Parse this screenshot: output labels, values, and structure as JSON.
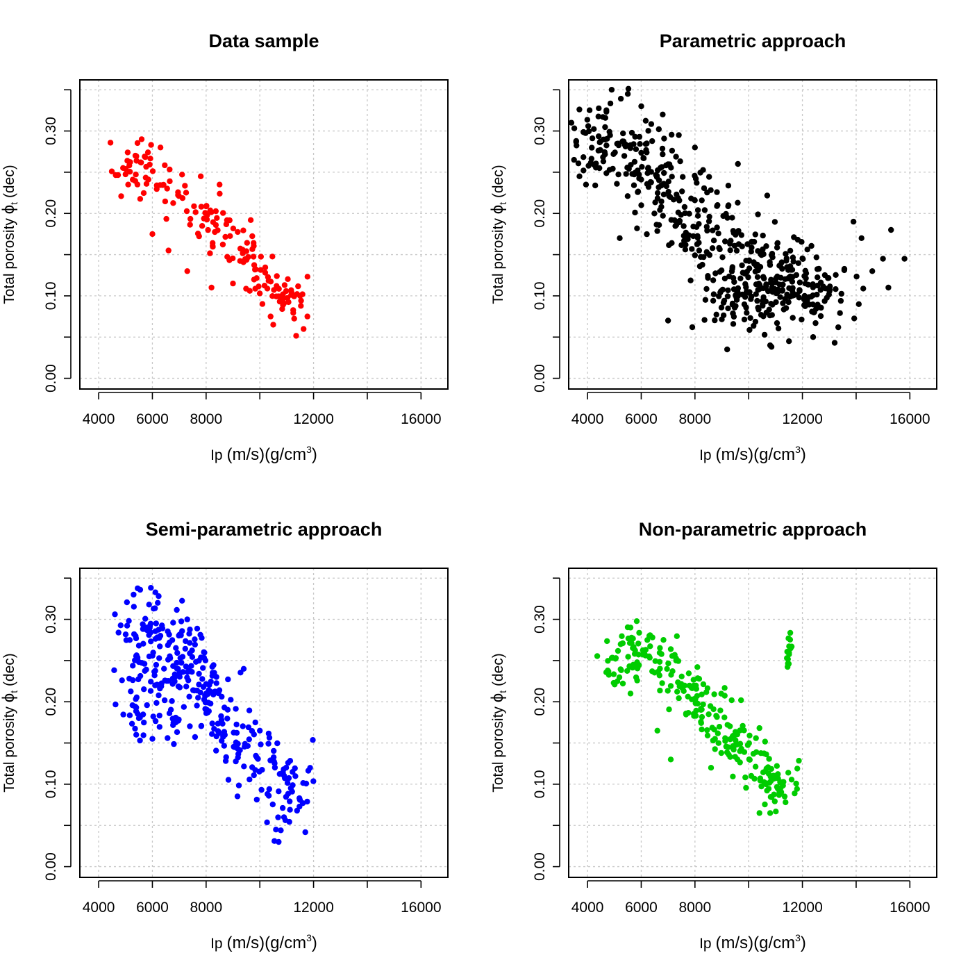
{
  "colors": {
    "data_sample": "#ff0000",
    "parametric": "#000000",
    "semi_parametric": "#0000ff",
    "non_parametric": "#00cc00"
  },
  "axis_text": {
    "xlabel_main": "Ip",
    "xlabel_units": "(m/s)(g/cm",
    "xlabel_exp": "3",
    "xlabel_close": ")",
    "ylabel_main": "Total porosity",
    "ylabel_symbol": "ϕ",
    "ylabel_sub": "t",
    "ylabel_unit": "(dec)"
  },
  "chart_data": [
    {
      "type": "scatter",
      "title": "Data sample",
      "xlabel": "Ip (m/s)(g/cm3)",
      "ylabel": "Total porosity ϕt (dec)",
      "xlim": [
        3300,
        17000
      ],
      "ylim": [
        -0.013,
        0.362
      ],
      "xticks": [
        4000,
        6000,
        8000,
        10000,
        12000,
        14000,
        16000
      ],
      "xtick_labels": [
        "4000",
        "6000",
        "8000",
        "",
        "12000",
        "",
        "16000"
      ],
      "yticks": [
        0.0,
        0.05,
        0.1,
        0.15,
        0.2,
        0.25,
        0.3,
        0.35
      ],
      "ytick_labels": [
        "0.00",
        "",
        "0.10",
        "",
        "0.20",
        "",
        "0.30",
        ""
      ],
      "grid": true,
      "color": "#ff0000",
      "clusters": [
        {
          "points": [
            [
              5200,
              0.25
            ],
            [
              5800,
              0.275
            ],
            [
              6500,
              0.24
            ],
            [
              7200,
              0.225
            ],
            [
              8000,
              0.195
            ],
            [
              8800,
              0.17
            ],
            [
              9500,
              0.155
            ],
            [
              10200,
              0.12
            ],
            [
              10800,
              0.105
            ],
            [
              11300,
              0.095
            ]
          ],
          "spread_x": 350,
          "spread_y": 0.017,
          "count": 170
        }
      ],
      "extra_points": [
        [
          5600,
          0.29
        ],
        [
          6300,
          0.28
        ],
        [
          5100,
          0.235
        ],
        [
          11500,
          0.1
        ],
        [
          10500,
          0.065
        ],
        [
          10400,
          0.075
        ],
        [
          9000,
          0.115
        ],
        [
          8200,
          0.11
        ],
        [
          7300,
          0.13
        ],
        [
          6600,
          0.155
        ],
        [
          6000,
          0.175
        ],
        [
          8500,
          0.235
        ],
        [
          7800,
          0.245
        ]
      ]
    },
    {
      "type": "scatter",
      "title": "Parametric approach",
      "xlabel": "Ip (m/s)(g/cm3)",
      "ylabel": "Total porosity ϕt (dec)",
      "xlim": [
        3300,
        17000
      ],
      "ylim": [
        -0.013,
        0.362
      ],
      "xticks": [
        4000,
        6000,
        8000,
        10000,
        12000,
        14000,
        16000
      ],
      "xtick_labels": [
        "4000",
        "6000",
        "8000",
        "",
        "12000",
        "",
        "16000"
      ],
      "yticks": [
        0.0,
        0.05,
        0.1,
        0.15,
        0.2,
        0.25,
        0.3,
        0.35
      ],
      "ytick_labels": [
        "0.00",
        "",
        "0.10",
        "",
        "0.20",
        "",
        "0.30",
        ""
      ],
      "grid": true,
      "color": "#000000",
      "clusters": [
        {
          "points": [
            [
              4200,
              0.28
            ],
            [
              5000,
              0.29
            ],
            [
              5800,
              0.275
            ],
            [
              6500,
              0.25
            ],
            [
              7300,
              0.22
            ],
            [
              8000,
              0.195
            ],
            [
              8800,
              0.17
            ],
            [
              9500,
              0.145
            ],
            [
              10300,
              0.13
            ],
            [
              11000,
              0.12
            ],
            [
              11800,
              0.115
            ]
          ],
          "spread_x": 650,
          "spread_y": 0.028,
          "count": 420
        },
        {
          "points": [
            [
              9000,
              0.1
            ],
            [
              10000,
              0.085
            ],
            [
              10800,
              0.09
            ],
            [
              12000,
              0.1
            ],
            [
              12800,
              0.11
            ]
          ],
          "spread_x": 700,
          "spread_y": 0.02,
          "count": 120
        }
      ],
      "extra_points": [
        [
          3400,
          0.31
        ],
        [
          3500,
          0.265
        ],
        [
          3700,
          0.245
        ],
        [
          4900,
          0.35
        ],
        [
          5500,
          0.345
        ],
        [
          6000,
          0.33
        ],
        [
          6800,
          0.32
        ],
        [
          7400,
          0.295
        ],
        [
          8000,
          0.28
        ],
        [
          9600,
          0.26
        ],
        [
          13900,
          0.19
        ],
        [
          14200,
          0.17
        ],
        [
          14600,
          0.13
        ],
        [
          14100,
          0.09
        ],
        [
          15000,
          0.145
        ],
        [
          15300,
          0.18
        ],
        [
          15800,
          0.145
        ],
        [
          15200,
          0.11
        ],
        [
          13200,
          0.043
        ],
        [
          9200,
          0.035
        ],
        [
          10800,
          0.04
        ],
        [
          7000,
          0.07
        ],
        [
          7900,
          0.062
        ],
        [
          6000,
          0.21
        ],
        [
          5200,
          0.17
        ],
        [
          12400,
          0.05
        ],
        [
          11500,
          0.045
        ]
      ]
    },
    {
      "type": "scatter",
      "title": "Semi-parametric approach",
      "xlabel": "Ip (m/s)(g/cm3)",
      "ylabel": "Total porosity ϕt (dec)",
      "xlim": [
        3300,
        17000
      ],
      "ylim": [
        -0.013,
        0.362
      ],
      "xticks": [
        4000,
        6000,
        8000,
        10000,
        12000,
        14000,
        16000
      ],
      "xtick_labels": [
        "4000",
        "6000",
        "8000",
        "",
        "12000",
        "",
        "16000"
      ],
      "yticks": [
        0.0,
        0.05,
        0.1,
        0.15,
        0.2,
        0.25,
        0.3,
        0.35
      ],
      "ytick_labels": [
        "0.00",
        "",
        "0.10",
        "",
        "0.20",
        "",
        "0.30",
        ""
      ],
      "grid": true,
      "color": "#0000ff",
      "clusters": [
        {
          "points": [
            [
              5200,
              0.28
            ],
            [
              5500,
              0.24
            ],
            [
              5500,
              0.2
            ],
            [
              5900,
              0.3
            ],
            [
              6300,
              0.26
            ],
            [
              6500,
              0.22
            ],
            [
              6700,
              0.18
            ],
            [
              7200,
              0.28
            ],
            [
              7500,
              0.24
            ],
            [
              7800,
              0.2
            ],
            [
              8200,
              0.22
            ],
            [
              8400,
              0.18
            ],
            [
              8900,
              0.16
            ],
            [
              9400,
              0.13
            ],
            [
              10000,
              0.14
            ],
            [
              10500,
              0.11
            ],
            [
              11000,
              0.09
            ],
            [
              11300,
              0.1
            ]
          ],
          "spread_x": 380,
          "spread_y": 0.022,
          "count": 360
        }
      ],
      "extra_points": [
        [
          5300,
          0.33
        ],
        [
          6200,
          0.32
        ],
        [
          9400,
          0.24
        ],
        [
          10000,
          0.165
        ],
        [
          10700,
          0.03
        ],
        [
          10600,
          0.045
        ],
        [
          10900,
          0.06
        ],
        [
          7300,
          0.3
        ],
        [
          5400,
          0.16
        ],
        [
          6000,
          0.155
        ]
      ]
    },
    {
      "type": "scatter",
      "title": "Non-parametric approach",
      "xlabel": "Ip (m/s)(g/cm3)",
      "ylabel": "Total porosity ϕt (dec)",
      "xlim": [
        3300,
        17000
      ],
      "ylim": [
        -0.013,
        0.362
      ],
      "xticks": [
        4000,
        6000,
        8000,
        10000,
        12000,
        14000,
        16000
      ],
      "xtick_labels": [
        "4000",
        "6000",
        "8000",
        "",
        "12000",
        "",
        "16000"
      ],
      "yticks": [
        0.0,
        0.05,
        0.1,
        0.15,
        0.2,
        0.25,
        0.3,
        0.35
      ],
      "ytick_labels": [
        "0.00",
        "",
        "0.10",
        "",
        "0.20",
        "",
        "0.30",
        ""
      ],
      "grid": true,
      "color": "#00cc00",
      "clusters": [
        {
          "points": [
            [
              5200,
              0.245
            ],
            [
              5700,
              0.27
            ],
            [
              6300,
              0.25
            ],
            [
              6900,
              0.24
            ],
            [
              7500,
              0.22
            ],
            [
              8100,
              0.2
            ],
            [
              8700,
              0.185
            ],
            [
              9300,
              0.165
            ],
            [
              9800,
              0.14
            ],
            [
              10300,
              0.12
            ],
            [
              10800,
              0.1
            ],
            [
              11200,
              0.105
            ]
          ],
          "spread_x": 360,
          "spread_y": 0.017,
          "count": 260
        },
        {
          "points": [
            [
              11450,
              0.25
            ],
            [
              11550,
              0.27
            ]
          ],
          "spread_x": 40,
          "spread_y": 0.012,
          "count": 14
        }
      ],
      "extra_points": [
        [
          5600,
          0.29
        ],
        [
          6300,
          0.28
        ],
        [
          7300,
          0.25
        ],
        [
          6600,
          0.165
        ],
        [
          7100,
          0.13
        ],
        [
          8600,
          0.12
        ],
        [
          10400,
          0.065
        ],
        [
          10800,
          0.065
        ],
        [
          5600,
          0.21
        ]
      ]
    }
  ]
}
